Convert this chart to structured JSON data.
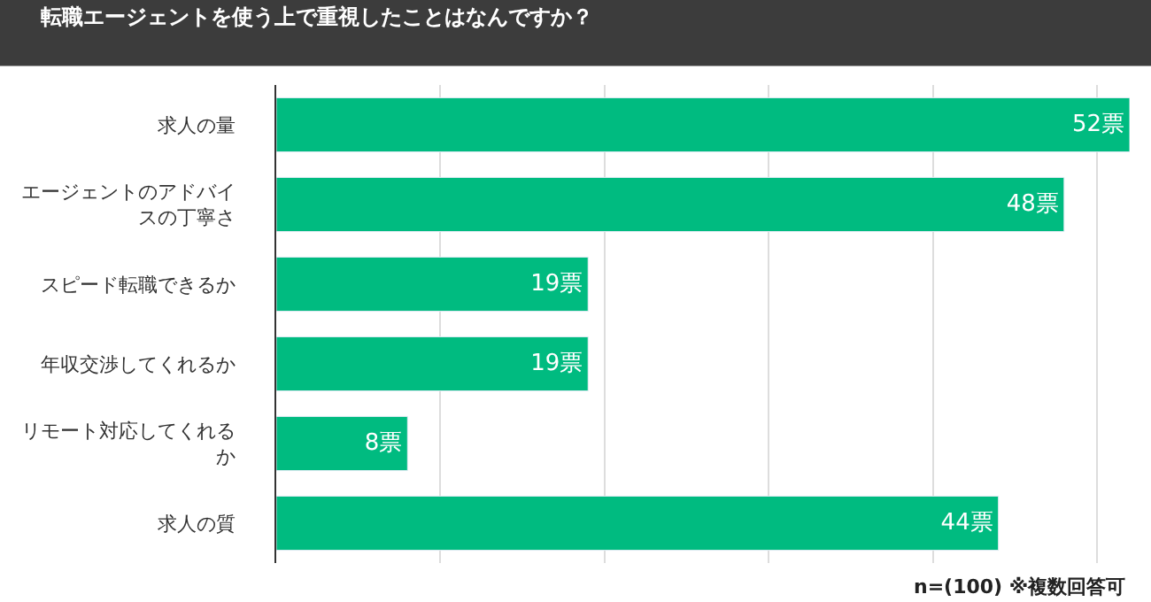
{
  "chart_data": {
    "type": "bar",
    "orientation": "horizontal",
    "title": "転職エージェントを使う上で重視したことはなんですか？",
    "categories": [
      "求人の量",
      "エージェントのアドバイスの丁寧さ",
      "スピード転職できるか",
      "年収交渉してくれるか",
      "リモート対応してくれるか",
      "求人の質"
    ],
    "values": [
      52,
      48,
      19,
      19,
      8,
      44
    ],
    "value_labels": [
      "52票",
      "48票",
      "19票",
      "19票",
      "8票",
      "44票"
    ],
    "color": "#00bb80",
    "xlim": [
      0,
      52
    ],
    "xticks": [
      {
        "value": 10,
        "label": null
      },
      {
        "value": 20,
        "label": null
      },
      {
        "value": 30,
        "label": null
      },
      {
        "value": 40,
        "label": null
      },
      {
        "value": 50,
        "label": null
      }
    ],
    "grid": "x",
    "tick_labels": "y",
    "legend": false,
    "annotations": [
      "n=(100) ※複数回答可"
    ]
  }
}
